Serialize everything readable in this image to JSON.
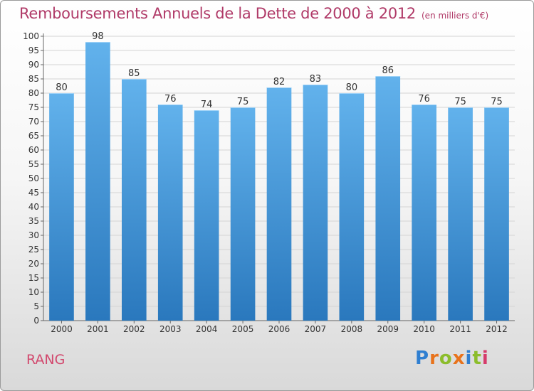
{
  "chart_data": {
    "type": "bar",
    "title": "Remboursements Annuels de la Dette de 2000 à 2012",
    "subtitle": "(en milliers d'€)",
    "categories": [
      "2000",
      "2001",
      "2002",
      "2003",
      "2004",
      "2005",
      "2006",
      "2007",
      "2008",
      "2009",
      "2010",
      "2011",
      "2012"
    ],
    "values": [
      80,
      98,
      85,
      76,
      74,
      75,
      82,
      83,
      80,
      86,
      76,
      75,
      75
    ],
    "ylim": [
      0,
      100
    ],
    "ytick_step": 5,
    "grid": true,
    "bar_color": "#3d8fd6"
  },
  "footer": {
    "label": "RANG",
    "brand": "Proxiti"
  },
  "colors": {
    "title": "#b03a68",
    "label": "#d2496e",
    "bar_light": "#62b2ec",
    "bar_dark": "#2a78bd"
  }
}
